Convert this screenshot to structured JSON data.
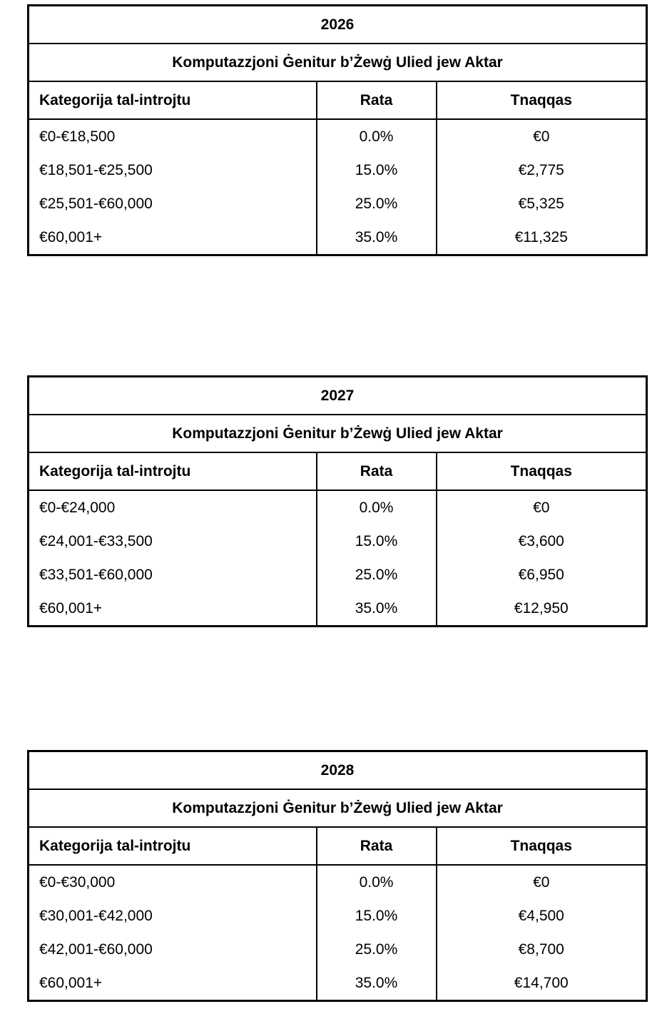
{
  "tables": [
    {
      "year": "2026",
      "subtitle": "Komputazzjoni Ġenitur b’Żewġ Ulied jew Aktar",
      "headers": [
        "Kategorija tal-introjtu",
        "Rata",
        "Tnaqqas"
      ],
      "rows": [
        [
          "€0-€18,500",
          "0.0%",
          "€0"
        ],
        [
          "€18,501-€25,500",
          "15.0%",
          "€2,775"
        ],
        [
          "€25,501-€60,000",
          "25.0%",
          "€5,325"
        ],
        [
          "€60,001+",
          "35.0%",
          "€11,325"
        ]
      ]
    },
    {
      "year": "2027",
      "subtitle": "Komputazzjoni Ġenitur b’Żewġ Ulied jew Aktar",
      "headers": [
        "Kategorija tal-introjtu",
        "Rata",
        "Tnaqqas"
      ],
      "rows": [
        [
          "€0-€24,000",
          "0.0%",
          "€0"
        ],
        [
          "€24,001-€33,500",
          "15.0%",
          "€3,600"
        ],
        [
          "€33,501-€60,000",
          "25.0%",
          "€6,950"
        ],
        [
          "€60,001+",
          "35.0%",
          "€12,950"
        ]
      ]
    },
    {
      "year": "2028",
      "subtitle": "Komputazzjoni Ġenitur b’Żewġ Ulied jew Aktar",
      "headers": [
        "Kategorija tal-introjtu",
        "Rata",
        "Tnaqqas"
      ],
      "rows": [
        [
          "€0-€30,000",
          "0.0%",
          "€0"
        ],
        [
          "€30,001-€42,000",
          "15.0%",
          "€4,500"
        ],
        [
          "€42,001-€60,000",
          "25.0%",
          "€8,700"
        ],
        [
          "€60,001+",
          "35.0%",
          "€14,700"
        ]
      ]
    }
  ]
}
